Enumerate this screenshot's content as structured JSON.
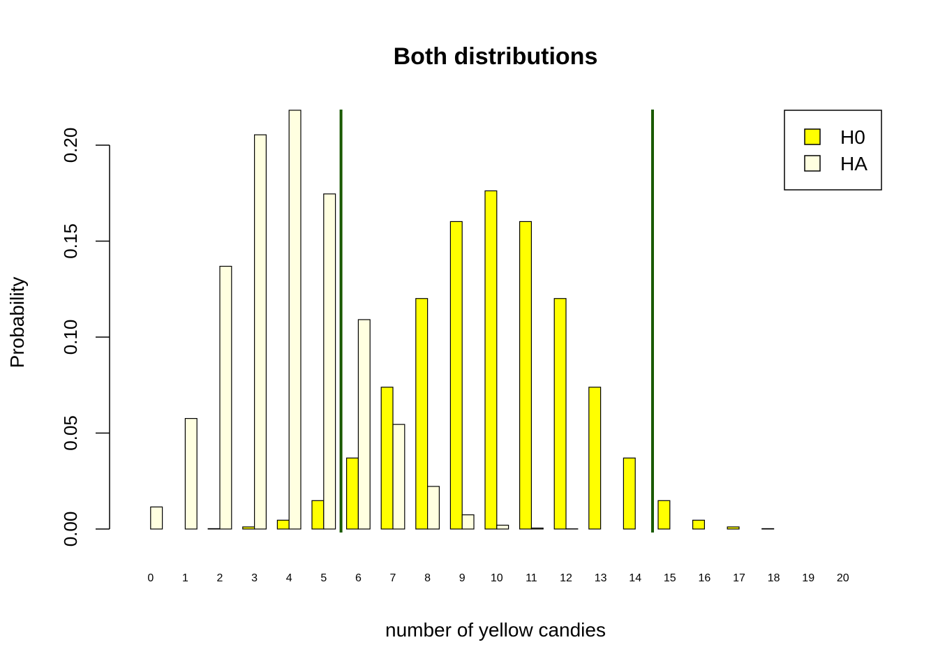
{
  "chart_data": {
    "type": "bar",
    "title": "Both distributions",
    "xlabel": "number of yellow candies",
    "ylabel": "Probability",
    "categories": [
      "0",
      "1",
      "2",
      "3",
      "4",
      "5",
      "6",
      "7",
      "8",
      "9",
      "10",
      "11",
      "12",
      "13",
      "14",
      "15",
      "16",
      "17",
      "18",
      "19",
      "20"
    ],
    "series": [
      {
        "name": "H0",
        "color": "#ffff00",
        "values": [
          0.0,
          0.0,
          0.0002,
          0.0011,
          0.0046,
          0.0148,
          0.037,
          0.0739,
          0.1201,
          0.1602,
          0.1762,
          0.1602,
          0.1201,
          0.0739,
          0.037,
          0.0148,
          0.0046,
          0.0011,
          0.0002,
          0.0,
          0.0
        ]
      },
      {
        "name": "HA",
        "color": "#ffffe0",
        "values": [
          0.0115,
          0.0576,
          0.1369,
          0.2054,
          0.2182,
          0.1746,
          0.1091,
          0.0545,
          0.0222,
          0.0074,
          0.002,
          0.0005,
          0.0001,
          0.0,
          0.0,
          0.0,
          0.0,
          0.0,
          0.0,
          0.0,
          0.0
        ]
      }
    ],
    "yticks": [
      "0.00",
      "0.05",
      "0.10",
      "0.15",
      "0.20"
    ],
    "ylim": [
      0,
      0.22
    ],
    "grid": false,
    "legend_position": "top-right",
    "reference_lines": [
      {
        "between_categories": [
          "5",
          "6"
        ],
        "color": "#1a5a00"
      },
      {
        "between_categories": [
          "14",
          "15"
        ],
        "color": "#1a5a00"
      }
    ]
  }
}
